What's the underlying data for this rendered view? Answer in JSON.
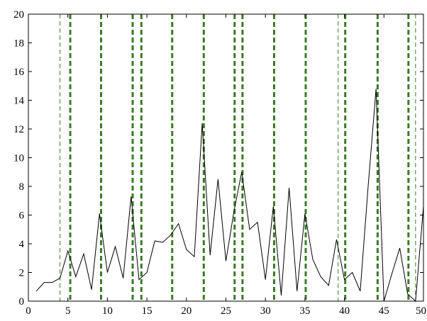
{
  "chart_data": {
    "type": "line",
    "title": "",
    "xlabel": "",
    "ylabel": "",
    "xlim": [
      0,
      50
    ],
    "ylim": [
      0,
      20
    ],
    "xticks": [
      0,
      5,
      10,
      15,
      20,
      25,
      30,
      35,
      40,
      45,
      50
    ],
    "yticks": [
      0,
      2,
      4,
      6,
      8,
      10,
      12,
      14,
      16,
      18,
      20
    ],
    "xtick_labels": [
      "0",
      "5",
      "10",
      "15",
      "20",
      "25",
      "30",
      "35",
      "40",
      "45",
      "50"
    ],
    "ytick_labels": [
      "0",
      "2",
      "4",
      "6",
      "8",
      "10",
      "12",
      "14",
      "16",
      "18",
      "20"
    ],
    "grid": false,
    "legend": "none",
    "series": [
      {
        "x": [
          1,
          2,
          3,
          4,
          5,
          6,
          7,
          8,
          9,
          10,
          11,
          12,
          13,
          14,
          15,
          16,
          17,
          18,
          19,
          20,
          21,
          22,
          23,
          24,
          25,
          26,
          27,
          28,
          29,
          30,
          31,
          32,
          33,
          34,
          35,
          36,
          37,
          38,
          39,
          40,
          41,
          42,
          43,
          44,
          45,
          46,
          47,
          48,
          49,
          50
        ],
        "values": [
          0.7,
          1.3,
          1.3,
          1.6,
          3.5,
          1.7,
          3.3,
          0.8,
          6.1,
          2.0,
          3.8,
          1.6,
          7.3,
          1.5,
          2.0,
          4.2,
          4.1,
          4.6,
          5.4,
          3.6,
          3.1,
          12.4,
          3.2,
          8.5,
          2.8,
          6.2,
          9.0,
          5.0,
          5.5,
          1.5,
          6.6,
          0.4,
          7.9,
          0.7,
          6.1,
          2.9,
          1.7,
          1.1,
          4.3,
          1.5,
          2.0,
          0.7,
          8.0,
          14.8,
          0.0,
          1.9,
          3.7,
          0.5,
          0.0,
          6.6
        ],
        "color": "#000000"
      }
    ],
    "vlines_thin": [
      4,
      39.2,
      49
    ],
    "vlines_thick": [
      5.3,
      9.2,
      13.2,
      14.3,
      18.2,
      22.2,
      26.1,
      27.1,
      31.1,
      35.1,
      40.1,
      44.2,
      48.1
    ],
    "vline_color": "#3a7a28"
  }
}
